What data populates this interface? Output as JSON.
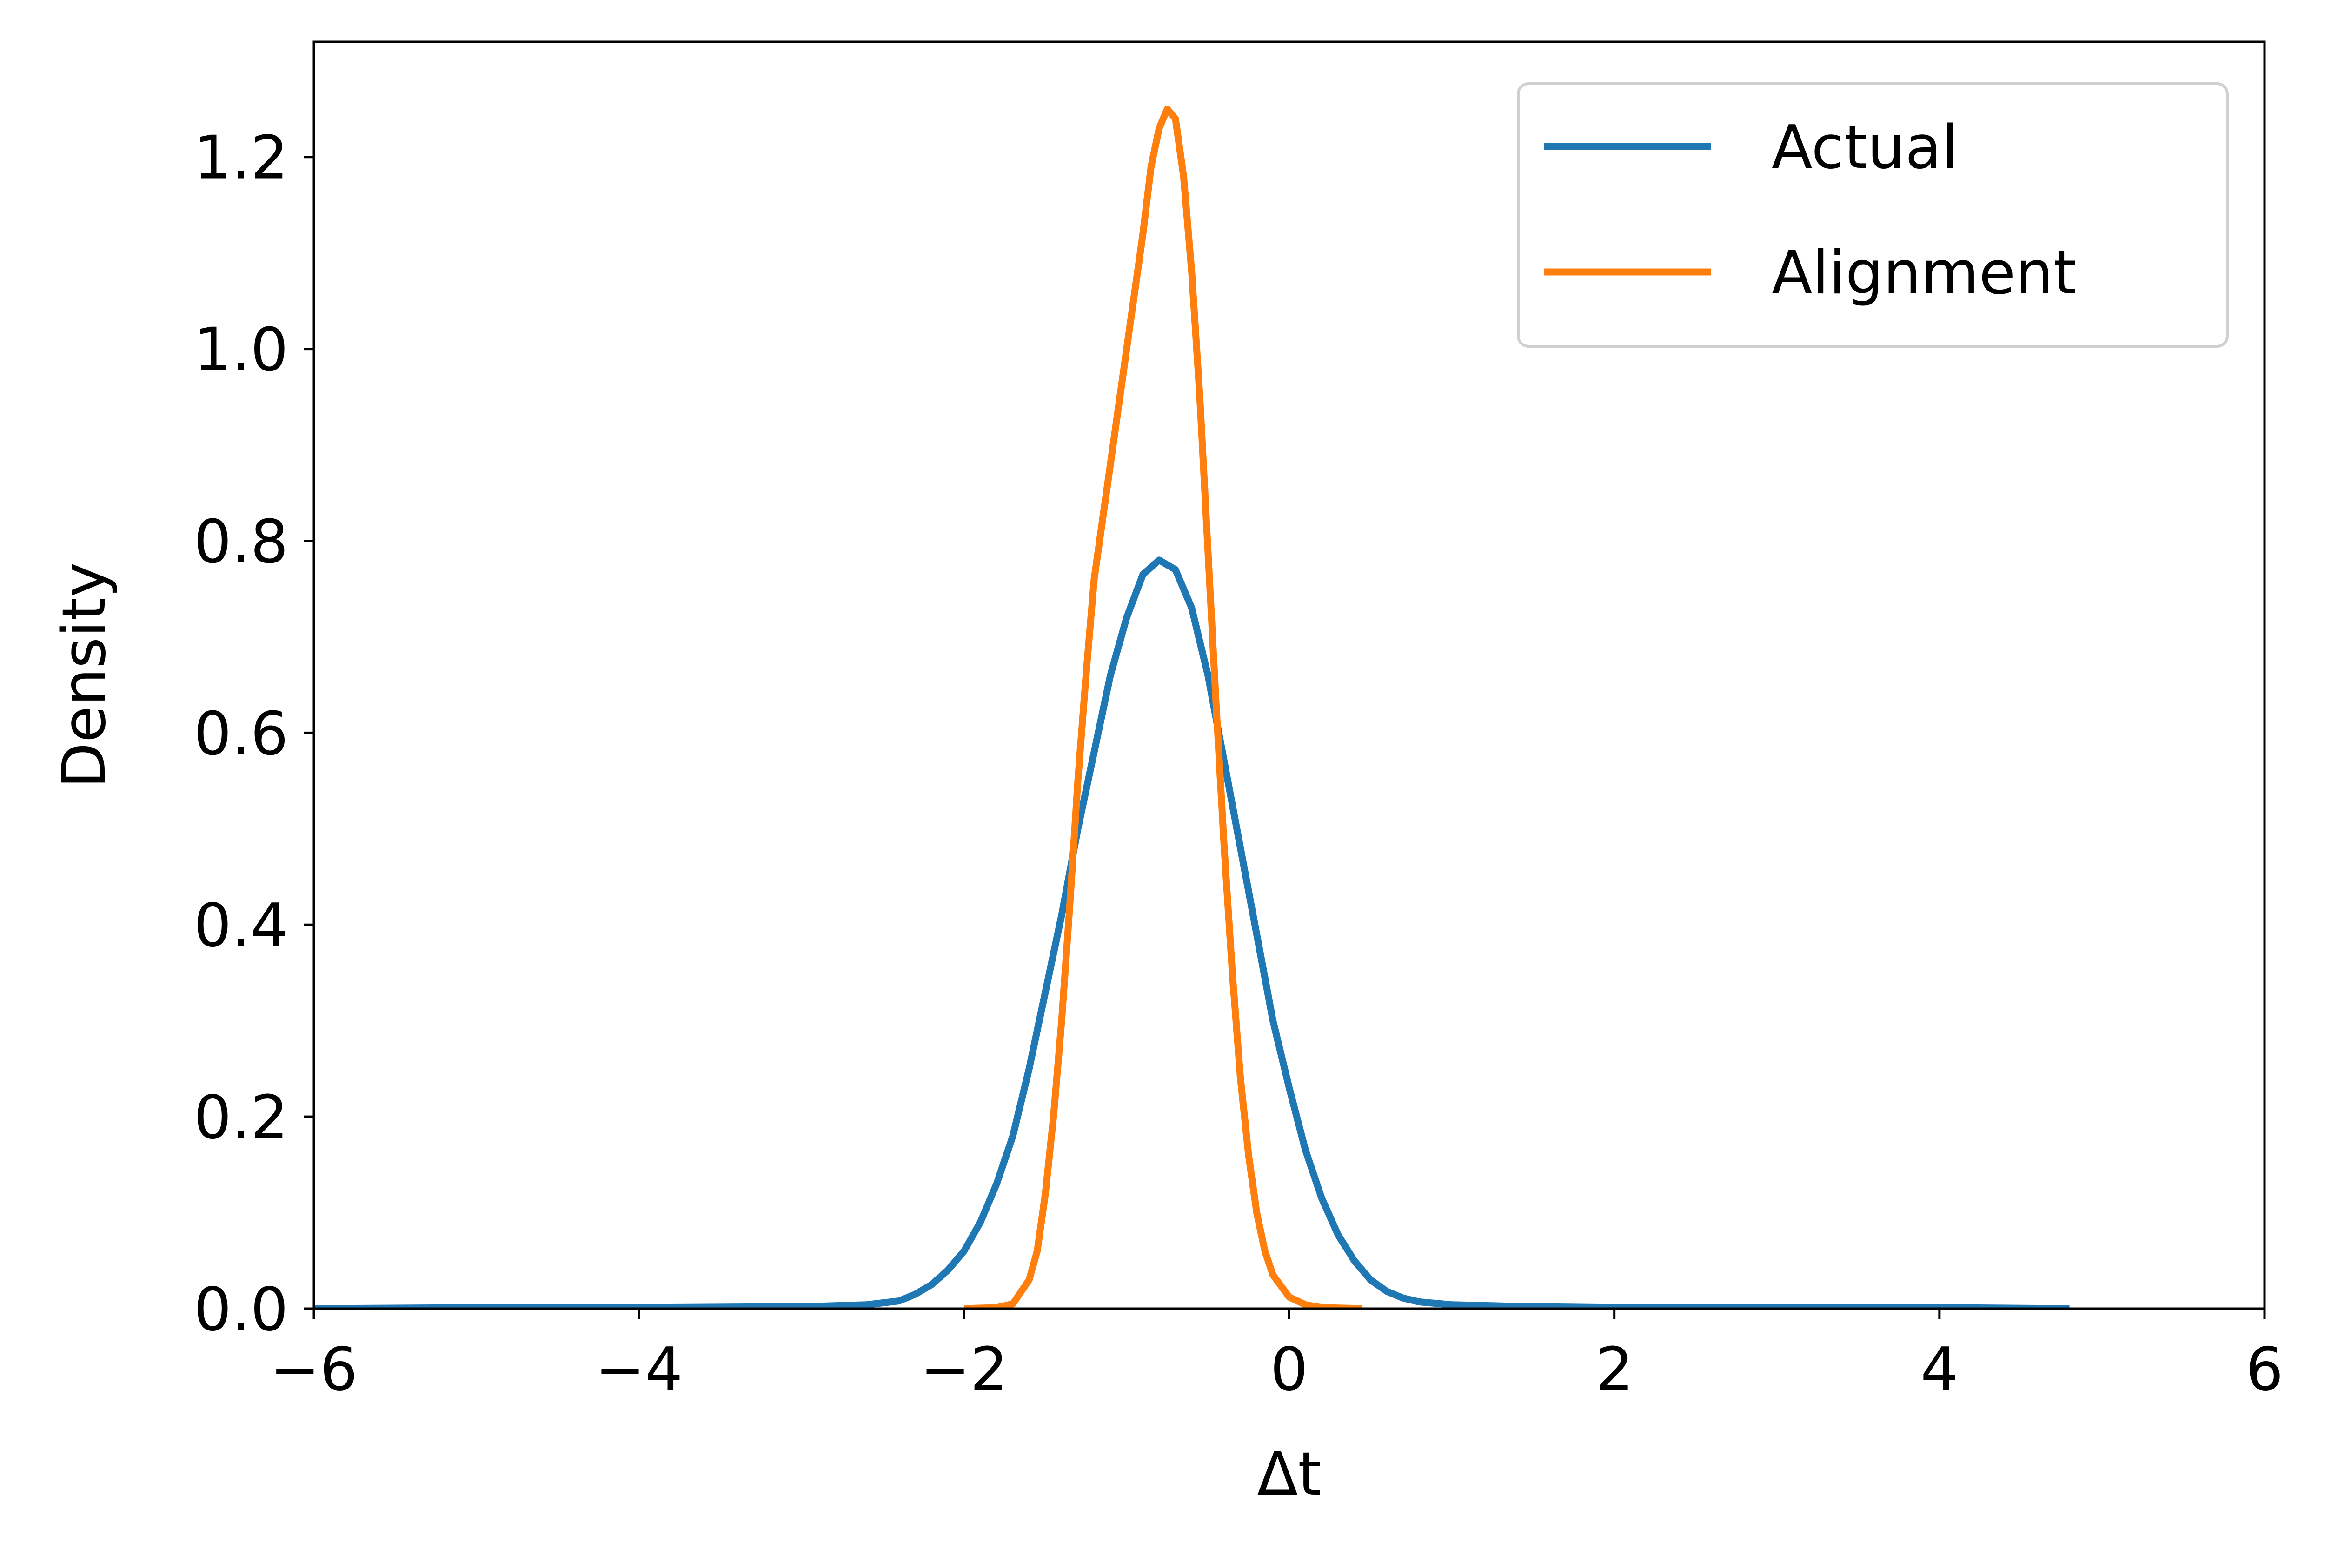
{
  "chart_data": {
    "type": "line",
    "xlabel": "Δt",
    "ylabel": "Density",
    "xlim": [
      -6,
      6
    ],
    "ylim": [
      0,
      1.32
    ],
    "x_ticks": [
      -6,
      -4,
      -2,
      0,
      2,
      4,
      6
    ],
    "x_tick_labels": [
      "−6",
      "−4",
      "−2",
      "0",
      "2",
      "4",
      "6"
    ],
    "y_ticks": [
      0.0,
      0.2,
      0.4,
      0.6,
      0.8,
      1.0,
      1.2
    ],
    "y_tick_labels": [
      "0.0",
      "0.2",
      "0.4",
      "0.6",
      "0.8",
      "1.0",
      "1.2"
    ],
    "grid": false,
    "legend_position": "top-right",
    "series": [
      {
        "name": "Actual",
        "color": "#1f77b4",
        "points": [
          [
            -6.0,
            0.0
          ],
          [
            -5.0,
            0.001
          ],
          [
            -4.0,
            0.001
          ],
          [
            -3.0,
            0.002
          ],
          [
            -2.6,
            0.004
          ],
          [
            -2.4,
            0.008
          ],
          [
            -2.3,
            0.015
          ],
          [
            -2.2,
            0.025
          ],
          [
            -2.1,
            0.04
          ],
          [
            -2.0,
            0.06
          ],
          [
            -1.9,
            0.09
          ],
          [
            -1.8,
            0.13
          ],
          [
            -1.7,
            0.18
          ],
          [
            -1.6,
            0.25
          ],
          [
            -1.5,
            0.33
          ],
          [
            -1.4,
            0.41
          ],
          [
            -1.3,
            0.5
          ],
          [
            -1.2,
            0.58
          ],
          [
            -1.1,
            0.66
          ],
          [
            -1.0,
            0.72
          ],
          [
            -0.9,
            0.765
          ],
          [
            -0.8,
            0.78
          ],
          [
            -0.7,
            0.77
          ],
          [
            -0.6,
            0.73
          ],
          [
            -0.5,
            0.66
          ],
          [
            -0.4,
            0.57
          ],
          [
            -0.3,
            0.48
          ],
          [
            -0.2,
            0.39
          ],
          [
            -0.1,
            0.3
          ],
          [
            0.0,
            0.23
          ],
          [
            0.1,
            0.165
          ],
          [
            0.2,
            0.115
          ],
          [
            0.3,
            0.077
          ],
          [
            0.4,
            0.05
          ],
          [
            0.5,
            0.03
          ],
          [
            0.6,
            0.018
          ],
          [
            0.7,
            0.011
          ],
          [
            0.8,
            0.007
          ],
          [
            1.0,
            0.004
          ],
          [
            1.5,
            0.002
          ],
          [
            2.0,
            0.001
          ],
          [
            3.0,
            0.001
          ],
          [
            4.0,
            0.001
          ],
          [
            4.8,
            0.0
          ]
        ]
      },
      {
        "name": "Alignment",
        "color": "#ff7f0e",
        "points": [
          [
            -2.0,
            0.0
          ],
          [
            -1.8,
            0.001
          ],
          [
            -1.7,
            0.005
          ],
          [
            -1.6,
            0.03
          ],
          [
            -1.55,
            0.06
          ],
          [
            -1.5,
            0.12
          ],
          [
            -1.45,
            0.2
          ],
          [
            -1.4,
            0.3
          ],
          [
            -1.35,
            0.42
          ],
          [
            -1.3,
            0.55
          ],
          [
            -1.25,
            0.66
          ],
          [
            -1.2,
            0.76
          ],
          [
            -1.1,
            0.88
          ],
          [
            -1.0,
            1.0
          ],
          [
            -0.9,
            1.12
          ],
          [
            -0.85,
            1.19
          ],
          [
            -0.8,
            1.23
          ],
          [
            -0.75,
            1.25
          ],
          [
            -0.7,
            1.24
          ],
          [
            -0.65,
            1.18
          ],
          [
            -0.6,
            1.08
          ],
          [
            -0.55,
            0.95
          ],
          [
            -0.5,
            0.79
          ],
          [
            -0.45,
            0.63
          ],
          [
            -0.4,
            0.48
          ],
          [
            -0.35,
            0.35
          ],
          [
            -0.3,
            0.24
          ],
          [
            -0.25,
            0.16
          ],
          [
            -0.2,
            0.1
          ],
          [
            -0.15,
            0.06
          ],
          [
            -0.1,
            0.035
          ],
          [
            0.0,
            0.012
          ],
          [
            0.1,
            0.004
          ],
          [
            0.2,
            0.001
          ],
          [
            0.45,
            0.0
          ]
        ]
      }
    ]
  }
}
